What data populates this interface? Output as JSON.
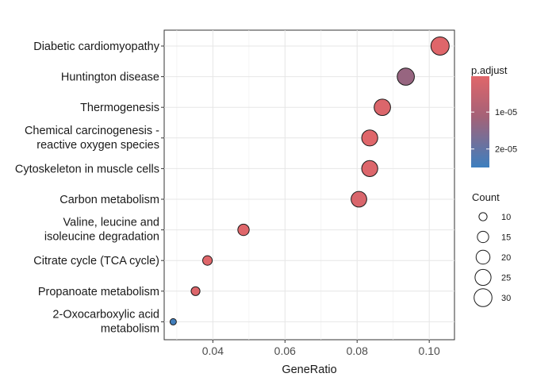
{
  "chart_data": {
    "type": "scatter",
    "xlabel": "GeneRatio",
    "xlim": [
      0.0265,
      0.107
    ],
    "xticks": [
      0.04,
      0.06,
      0.08,
      0.1
    ],
    "xtick_labels": [
      "0.04",
      "0.06",
      "0.08",
      "0.10"
    ],
    "grid": true,
    "categories": [
      {
        "label": [
          "Diabetic cardiomyopathy"
        ],
        "gene_ratio": 0.103,
        "count": 31,
        "p_adjust": 4.5e-07
      },
      {
        "label": [
          "Huntington disease"
        ],
        "gene_ratio": 0.0935,
        "count": 28,
        "p_adjust": 1.3e-05
      },
      {
        "label": [
          "Thermogenesis"
        ],
        "gene_ratio": 0.087,
        "count": 26,
        "p_adjust": 1.2e-06
      },
      {
        "label": [
          "Chemical carcinogenesis -",
          "reactive oxygen species"
        ],
        "gene_ratio": 0.0835,
        "count": 25,
        "p_adjust": 5e-07
      },
      {
        "label": [
          "Cytoskeleton in muscle cells"
        ],
        "gene_ratio": 0.0835,
        "count": 25,
        "p_adjust": 1e-06
      },
      {
        "label": [
          "Carbon metabolism"
        ],
        "gene_ratio": 0.0805,
        "count": 24,
        "p_adjust": 1.5e-06
      },
      {
        "label": [
          "Valine, leucine and",
          "isoleucine degradation"
        ],
        "gene_ratio": 0.0485,
        "count": 15,
        "p_adjust": 5e-07
      },
      {
        "label": [
          "Citrate cycle (TCA cycle)"
        ],
        "gene_ratio": 0.0385,
        "count": 12,
        "p_adjust": 5e-07
      },
      {
        "label": [
          "Propanoate metabolism"
        ],
        "gene_ratio": 0.0352,
        "count": 11,
        "p_adjust": 8e-07
      },
      {
        "label": [
          "2-Oxocarboxylic acid",
          "metabolism"
        ],
        "gene_ratio": 0.029,
        "count": 8,
        "p_adjust": 2.45e-05
      }
    ],
    "legend_color": {
      "title": "p.adjust",
      "range": [
        3e-07,
        2.5e-05
      ],
      "ticks": [
        1e-05,
        2e-05
      ],
      "tick_labels": [
        "1e-05",
        "2e-05"
      ],
      "low_color": "#e0666a",
      "high_color": "#3d7fbf"
    },
    "legend_size": {
      "title": "Count",
      "values": [
        10,
        15,
        20,
        25,
        30
      ],
      "labels": [
        "10",
        "15",
        "20",
        "25",
        "30"
      ]
    },
    "legend_placement": "right"
  }
}
